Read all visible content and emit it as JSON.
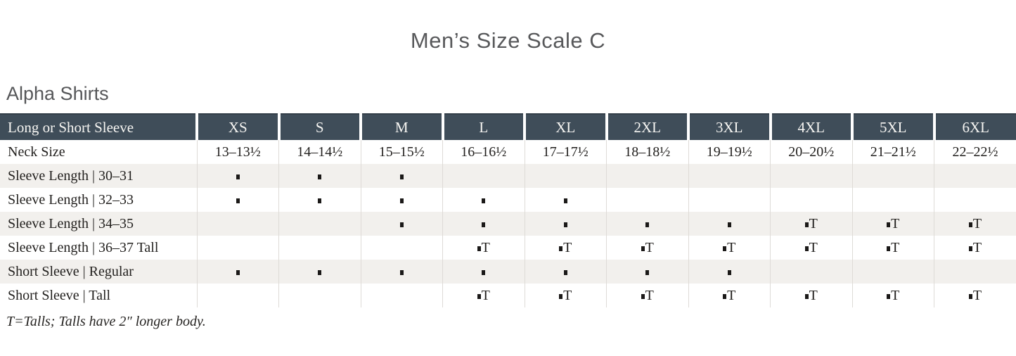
{
  "page": {
    "title": "Men’s Size Scale C",
    "section_heading": "Alpha Shirts",
    "footnote": "T=Talls; Talls have 2″ longer body."
  },
  "table": {
    "header": {
      "row_label": "Long or Short Sleeve",
      "sizes": [
        "XS",
        "S",
        "M",
        "L",
        "XL",
        "2XL",
        "3XL",
        "4XL",
        "5XL",
        "6XL"
      ]
    },
    "rows": [
      {
        "label": "Neck Size",
        "cells": [
          "13–13½",
          "14–14½",
          "15–15½",
          "16–16½",
          "17–17½",
          "18–18½",
          "19–19½",
          "20–20½",
          "21–21½",
          "22–22½"
        ],
        "striped": false
      },
      {
        "label": "Sleeve Length  |  30–31",
        "cells": [
          "dot",
          "dot",
          "dot",
          "",
          "",
          "",
          "",
          "",
          "",
          ""
        ],
        "striped": true
      },
      {
        "label": "Sleeve Length  |  32–33",
        "cells": [
          "dot",
          "dot",
          "dot",
          "dot",
          "dot",
          "",
          "",
          "",
          "",
          ""
        ],
        "striped": false
      },
      {
        "label": "Sleeve Length  |  34–35",
        "cells": [
          "",
          "",
          "dot",
          "dot",
          "dot",
          "dot",
          "dot",
          "dotT",
          "dotT",
          "dotT"
        ],
        "striped": true
      },
      {
        "label": "Sleeve Length  |  36–37 Tall",
        "cells": [
          "",
          "",
          "",
          "dotT",
          "dotT",
          "dotT",
          "dotT",
          "dotT",
          "dotT",
          "dotT"
        ],
        "striped": false
      },
      {
        "label": "Short Sleeve  |  Regular",
        "cells": [
          "dot",
          "dot",
          "dot",
          "dot",
          "dot",
          "dot",
          "dot",
          "",
          "",
          ""
        ],
        "striped": true
      },
      {
        "label": "Short Sleeve  |  Tall",
        "cells": [
          "",
          "",
          "",
          "dotT",
          "dotT",
          "dotT",
          "dotT",
          "dotT",
          "dotT",
          "dotT"
        ],
        "striped": false
      }
    ],
    "marker_legend": {
      "dot_symbol": "▪",
      "tall_suffix": "T"
    }
  },
  "colors": {
    "header_background": "#3f4d59",
    "header_text": "#f6f5f2",
    "stripe_background": "#f2f0ed",
    "divider": "#dedbd7",
    "body_text": "#211f1d",
    "title_text": "#58595b"
  }
}
